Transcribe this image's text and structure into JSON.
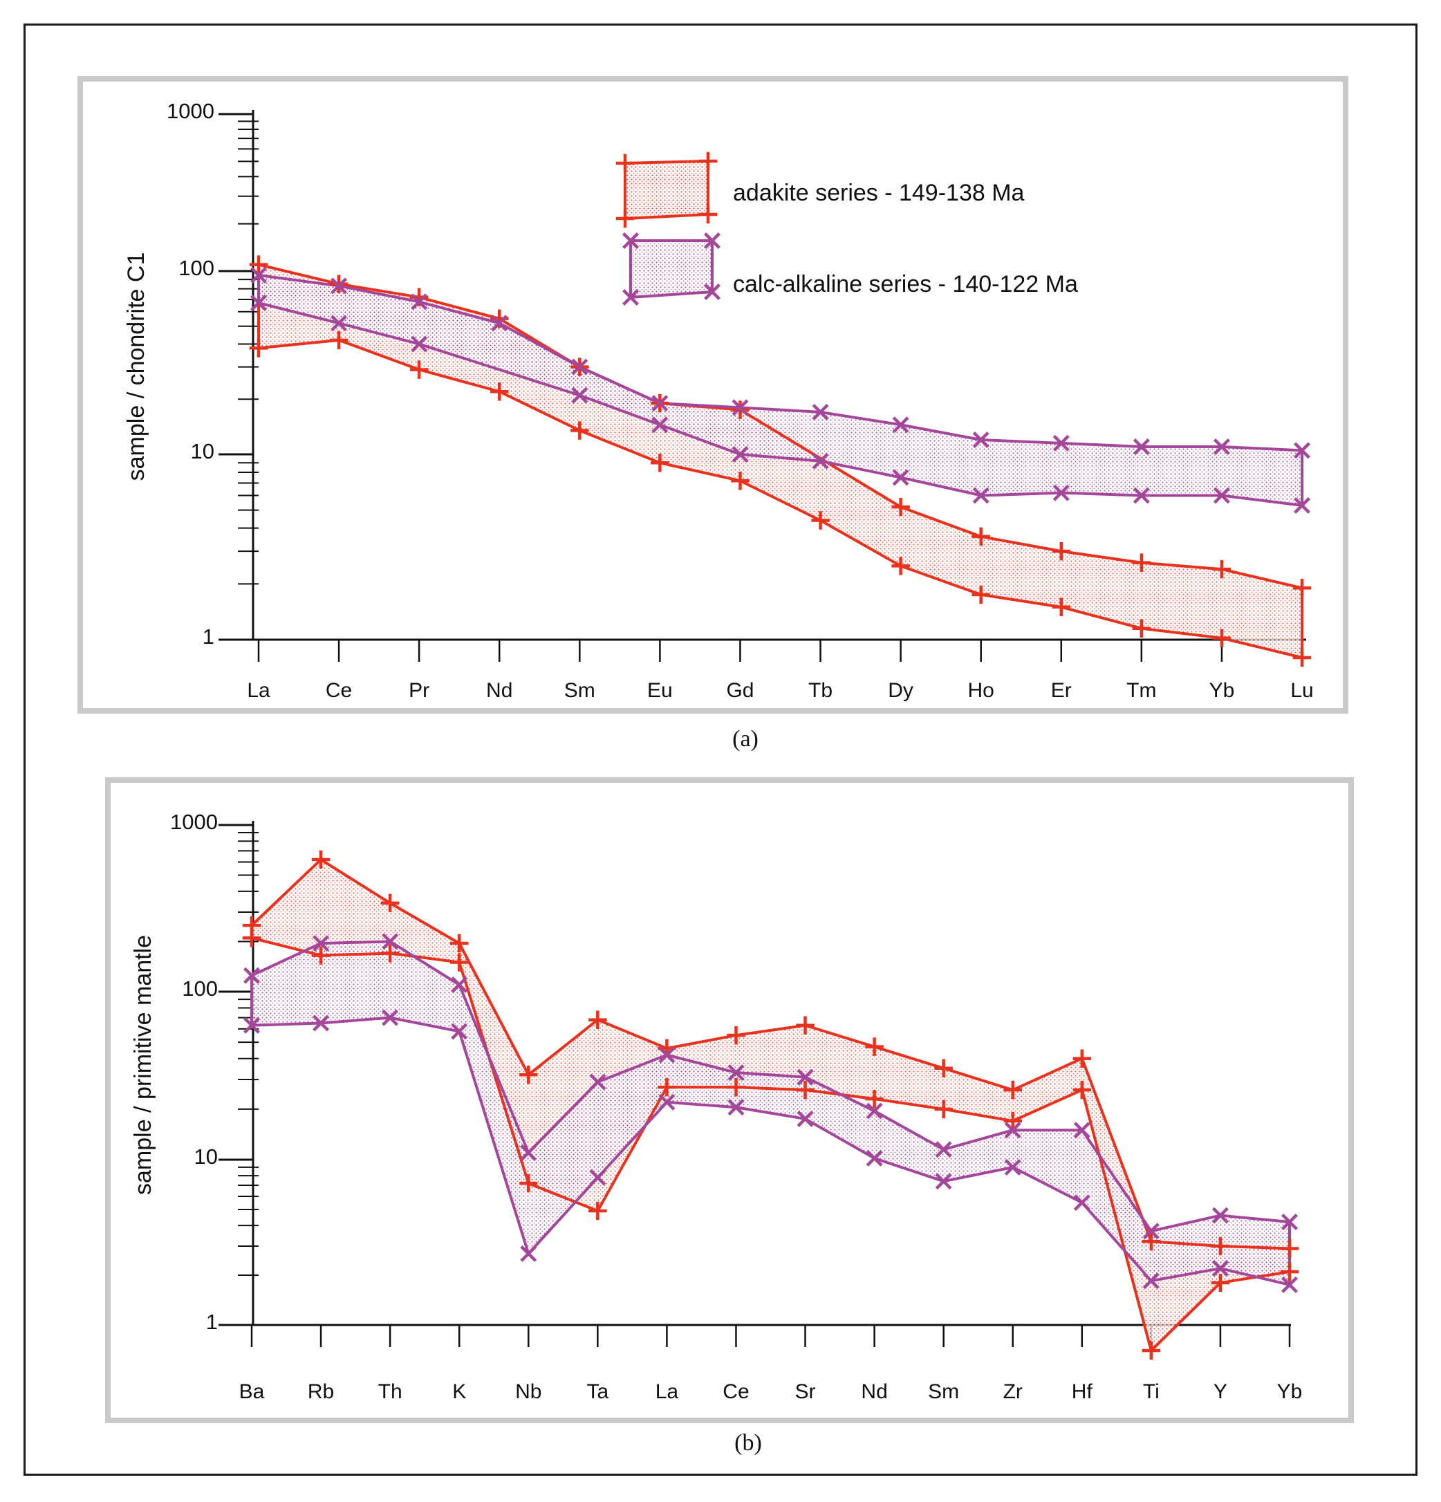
{
  "colors": {
    "adakite": "#e8321e",
    "calc_alkaline": "#a4479a",
    "frame": "#c9c9c9",
    "axis": "#111111"
  },
  "legend": [
    {
      "key": "adakite",
      "label": "adakite series - 149-138 Ma",
      "marker": "plus"
    },
    {
      "key": "calc_alkaline",
      "label": "calc-alkaline series - 140-122 Ma",
      "marker": "cross"
    }
  ],
  "chart_data": [
    {
      "id": "a",
      "type": "line",
      "caption": "(a)",
      "ylabel": "sample / chondrite C1",
      "yscale": "log",
      "ylim": [
        1,
        1000
      ],
      "yticks": [
        {
          "value": 1,
          "label": "1"
        },
        {
          "value": 10,
          "label": "10"
        },
        {
          "value": 100,
          "label": "100"
        },
        {
          "value": 1000,
          "label": "1000"
        }
      ],
      "categories": [
        "La",
        "Ce",
        "Pr",
        "Nd",
        "Sm",
        "Eu",
        "Gd",
        "Tb",
        "Dy",
        "Ho",
        "Er",
        "Tm",
        "Yb",
        "Lu"
      ],
      "series": [
        {
          "name": "adakite upper",
          "group": "adakite",
          "marker": "plus",
          "values": [
            110,
            85,
            72,
            55,
            30,
            19,
            17.5,
            null,
            5.2,
            3.6,
            3.0,
            2.6,
            2.4,
            1.9
          ]
        },
        {
          "name": "adakite lower",
          "group": "adakite",
          "marker": "plus",
          "values": [
            38,
            42,
            29,
            22,
            13.5,
            9,
            7.2,
            4.4,
            2.5,
            1.75,
            1.5,
            1.15,
            1.02,
            0.8
          ]
        },
        {
          "name": "calc-alkaline upper",
          "group": "calc_alkaline",
          "marker": "cross",
          "values": [
            95,
            83,
            68,
            52,
            30,
            19,
            18,
            17,
            14.5,
            12,
            11.5,
            11,
            11,
            10.5
          ]
        },
        {
          "name": "calc-alkaline lower",
          "group": "calc_alkaline",
          "marker": "cross",
          "values": [
            67,
            52,
            40,
            null,
            21,
            14.5,
            10,
            9.2,
            7.5,
            6,
            6.2,
            6,
            6,
            5.3
          ]
        }
      ]
    },
    {
      "id": "b",
      "type": "line",
      "caption": "(b)",
      "ylabel": "sample / primitive mantle",
      "yscale": "log",
      "ylim": [
        1,
        1000
      ],
      "yticks": [
        {
          "value": 1,
          "label": "1"
        },
        {
          "value": 10,
          "label": "10"
        },
        {
          "value": 100,
          "label": "100"
        },
        {
          "value": 1000,
          "label": "1000"
        }
      ],
      "categories": [
        "Ba",
        "Rb",
        "Th",
        "K",
        "Nb",
        "Ta",
        "La",
        "Ce",
        "Sr",
        "Nd",
        "Sm",
        "Zr",
        "Hf",
        "Ti",
        "Y",
        "Yb"
      ],
      "series": [
        {
          "name": "adakite upper",
          "group": "adakite",
          "marker": "plus",
          "values": [
            250,
            620,
            340,
            195,
            32,
            68,
            46,
            55,
            63,
            47,
            35,
            26,
            40,
            3.2,
            3.0,
            2.9
          ]
        },
        {
          "name": "adakite lower",
          "group": "adakite",
          "marker": "plus",
          "values": [
            210,
            165,
            170,
            150,
            7.2,
            4.9,
            27,
            27,
            26,
            23,
            20,
            17,
            26,
            0.7,
            1.8,
            2.1
          ]
        },
        {
          "name": "calc-alkaline upper",
          "group": "calc_alkaline",
          "marker": "cross",
          "values": [
            125,
            195,
            200,
            110,
            11,
            29,
            42,
            33,
            31,
            19.5,
            11.5,
            15,
            15,
            3.7,
            4.6,
            4.2
          ]
        },
        {
          "name": "calc-alkaline lower",
          "group": "calc_alkaline",
          "marker": "cross",
          "values": [
            63,
            65,
            70,
            58,
            2.7,
            7.8,
            22,
            20.5,
            17.5,
            10.2,
            7.4,
            9,
            5.5,
            1.85,
            2.2,
            1.75
          ]
        }
      ]
    }
  ]
}
